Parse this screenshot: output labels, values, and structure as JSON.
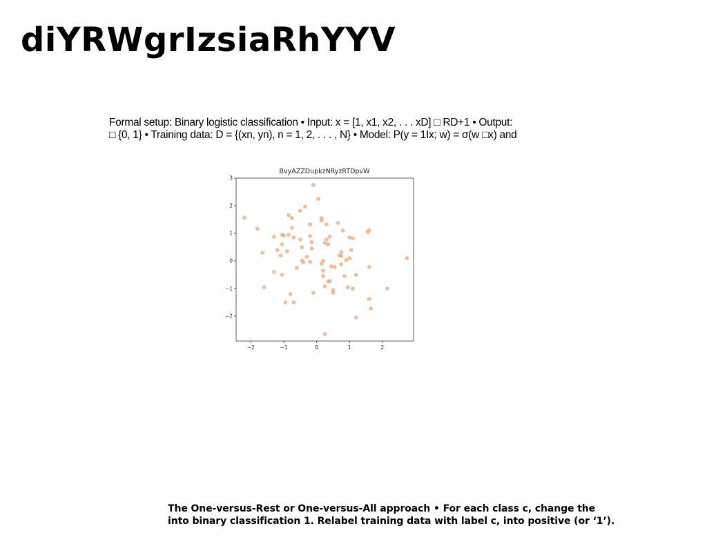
{
  "slide": {
    "title": "diYRWgrIzsiaRhYYV",
    "paragraph_lines": [
      "Formal setup: Binary logistic classification • Input: x = [1, x1, x2, . . . xD] □ RD+1 • Output:",
      "□ {0, 1} • Training data: D = {(xn, yn), n = 1, 2, . . . , N} • Model: P(y = 1Ix; w) = σ(w □x) and"
    ],
    "bottom_lines": [
      "The One-versus-Rest or One-versus-All approach • For each class c, change the",
      "into binary classification 1. Relabel training data with label c, into positive (or ‘1’)."
    ]
  },
  "chart_data": {
    "type": "scatter",
    "title": "BvyAZZDupkzNRyzRTDpvW",
    "xlabel": "",
    "ylabel": "",
    "xlim": [
      -2.45,
      2.95
    ],
    "ylim": [
      -2.9,
      3.0
    ],
    "xticks": [
      -2,
      -1,
      0,
      1,
      2
    ],
    "yticks": [
      -2,
      -1,
      0,
      1,
      2,
      3
    ],
    "grid": false,
    "point_color": "#e8a87c",
    "points": [
      [
        -2.2,
        1.57
      ],
      [
        -1.8,
        1.17
      ],
      [
        -1.65,
        0.3
      ],
      [
        -1.6,
        -0.95
      ],
      [
        -1.3,
        0.88
      ],
      [
        -1.3,
        -0.4
      ],
      [
        -1.2,
        0.4
      ],
      [
        -1.1,
        0.2
      ],
      [
        -1.05,
        0.95
      ],
      [
        -1.05,
        0.6
      ],
      [
        -1.0,
        0.92
      ],
      [
        -1.05,
        -0.5
      ],
      [
        -0.95,
        -1.5
      ],
      [
        -0.9,
        0.35
      ],
      [
        -0.85,
        1.66
      ],
      [
        -0.85,
        0.95
      ],
      [
        -0.8,
        -1.2
      ],
      [
        -0.75,
        1.55
      ],
      [
        -0.75,
        1.2
      ],
      [
        -0.7,
        0.85
      ],
      [
        -0.7,
        -1.5
      ],
      [
        -0.6,
        -0.25
      ],
      [
        -0.5,
        1.82
      ],
      [
        -0.5,
        0.78
      ],
      [
        -0.45,
        0.5
      ],
      [
        -0.45,
        0.02
      ],
      [
        -0.4,
        -0.05
      ],
      [
        -0.35,
        1.97
      ],
      [
        -0.3,
        0.15
      ],
      [
        -0.2,
        1.32
      ],
      [
        -0.2,
        0.9
      ],
      [
        -0.2,
        -0.03
      ],
      [
        -0.15,
        0.68
      ],
      [
        -0.15,
        0.45
      ],
      [
        -0.1,
        2.75
      ],
      [
        -0.1,
        -1.15
      ],
      [
        0.05,
        2.25
      ],
      [
        0.15,
        1.47
      ],
      [
        0.15,
        1.55
      ],
      [
        0.15,
        -0.1
      ],
      [
        0.2,
        -0.35
      ],
      [
        0.2,
        -0.55
      ],
      [
        0.2,
        0.0
      ],
      [
        0.25,
        0.65
      ],
      [
        0.25,
        -0.92
      ],
      [
        0.25,
        -2.65
      ],
      [
        0.3,
        1.32
      ],
      [
        0.3,
        0.78
      ],
      [
        0.35,
        0.6
      ],
      [
        0.35,
        -0.75
      ],
      [
        0.4,
        0.88
      ],
      [
        0.4,
        -0.73
      ],
      [
        0.45,
        -0.2
      ],
      [
        0.5,
        -1.15
      ],
      [
        0.5,
        -1.05
      ],
      [
        0.55,
        -0.22
      ],
      [
        0.65,
        1.38
      ],
      [
        0.7,
        0.2
      ],
      [
        0.75,
        0.18
      ],
      [
        0.75,
        0.33
      ],
      [
        0.75,
        -0.12
      ],
      [
        0.8,
        1.1
      ],
      [
        0.85,
        -0.55
      ],
      [
        0.9,
        0.03
      ],
      [
        0.95,
        -0.95
      ],
      [
        1.0,
        0.85
      ],
      [
        1.0,
        0.1
      ],
      [
        1.05,
        0.4
      ],
      [
        1.1,
        0.82
      ],
      [
        1.1,
        -1.0
      ],
      [
        1.2,
        -0.5
      ],
      [
        1.2,
        -2.05
      ],
      [
        1.55,
        1.05
      ],
      [
        1.6,
        1.12
      ],
      [
        1.6,
        -1.38
      ],
      [
        1.6,
        -0.22
      ],
      [
        1.65,
        -1.72
      ],
      [
        2.15,
        -1.0
      ],
      [
        2.75,
        0.1
      ]
    ]
  }
}
